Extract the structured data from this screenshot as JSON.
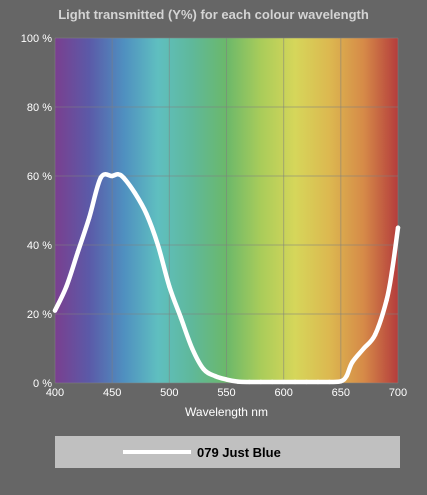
{
  "chart_data": {
    "type": "line",
    "title": "Light transmitted (Y%) for each colour wavelength",
    "xlabel": "Wavelength nm",
    "ylabel": "",
    "xlim": [
      400,
      700
    ],
    "ylim": [
      0,
      100
    ],
    "x_ticks": [
      400,
      450,
      500,
      550,
      600,
      650,
      700
    ],
    "y_ticks": [
      0,
      20,
      40,
      60,
      80,
      100
    ],
    "y_tick_suffix": " %",
    "grid": true,
    "background": "visible spectrum gradient",
    "colors": {
      "page_background": "#666666",
      "line": "#ffffff",
      "grid": "#808080",
      "legend_background": "#c0c0c0",
      "spectrum": [
        "#7a3f8f",
        "#5b5aa8",
        "#4f8fc0",
        "#5fbfc0",
        "#5fb89a",
        "#6bb86a",
        "#a9cc5a",
        "#d6d65a",
        "#dcb850",
        "#d68a48",
        "#b43c3c"
      ]
    },
    "series": [
      {
        "name": "079 Just Blue",
        "x": [
          400,
          410,
          420,
          430,
          440,
          450,
          455,
          460,
          470,
          480,
          490,
          500,
          510,
          520,
          530,
          540,
          550,
          560,
          570,
          580,
          590,
          600,
          610,
          620,
          630,
          640,
          650,
          655,
          660,
          670,
          680,
          690,
          695,
          700
        ],
        "y": [
          21,
          28,
          38,
          48,
          59.5,
          60,
          60.5,
          59.5,
          55,
          49,
          40,
          28,
          19,
          10,
          4,
          2,
          1,
          0.4,
          0.3,
          0.3,
          0.3,
          0.3,
          0.3,
          0.3,
          0.3,
          0.3,
          0.5,
          2,
          6,
          10,
          14,
          24,
          33,
          45
        ]
      }
    ]
  },
  "legend": {
    "label": "079 Just Blue"
  }
}
